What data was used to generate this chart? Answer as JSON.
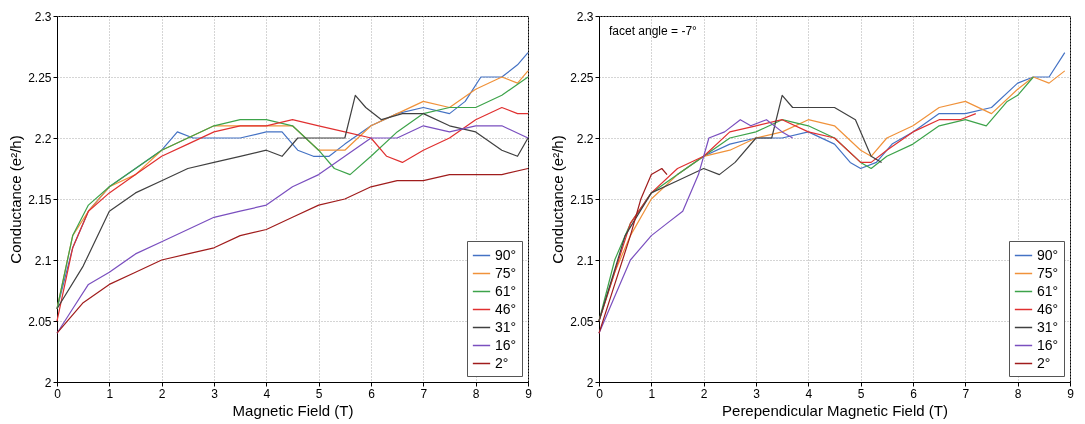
{
  "chart_data": [
    {
      "type": "line",
      "xlabel": "Magnetic Field (T)",
      "ylabel": "Conductance (e²/h)",
      "xlim": [
        0,
        9
      ],
      "ylim": [
        2,
        2.3
      ],
      "xticks": [
        0,
        1,
        2,
        3,
        4,
        5,
        6,
        7,
        8,
        9
      ],
      "yticks": [
        2,
        2.05,
        2.1,
        2.15,
        2.2,
        2.25,
        2.3
      ],
      "grid": true,
      "legend": "bottom right",
      "line_style": "solid",
      "series": [
        {
          "name": "90°",
          "color": "#4472c4",
          "x": [
            0,
            0.3,
            0.6,
            1,
            1.5,
            2,
            2.3,
            2.6,
            3,
            3.5,
            4,
            4.3,
            4.6,
            4.9,
            5.2,
            5.5,
            6,
            6.5,
            7,
            7.5,
            7.8,
            8.1,
            8.5,
            8.8,
            9
          ],
          "values": [
            2.06,
            2.11,
            2.14,
            2.16,
            2.175,
            2.19,
            2.205,
            2.2,
            2.2,
            2.2,
            2.205,
            2.205,
            2.19,
            2.185,
            2.185,
            2.195,
            2.21,
            2.22,
            2.225,
            2.22,
            2.23,
            2.25,
            2.25,
            2.26,
            2.27
          ]
        },
        {
          "name": "75°",
          "color": "#f0923a",
          "x": [
            0,
            0.3,
            0.6,
            1,
            1.5,
            2,
            2.5,
            3,
            3.5,
            4,
            4.5,
            5,
            5.5,
            6,
            6.5,
            7,
            7.5,
            8,
            8.5,
            8.8,
            9
          ],
          "values": [
            2.06,
            2.12,
            2.14,
            2.16,
            2.17,
            2.19,
            2.2,
            2.21,
            2.21,
            2.21,
            2.21,
            2.19,
            2.19,
            2.21,
            2.22,
            2.23,
            2.225,
            2.24,
            2.25,
            2.245,
            2.255
          ]
        },
        {
          "name": "61°",
          "color": "#3da34a",
          "x": [
            0,
            0.3,
            0.6,
            1,
            1.5,
            2,
            2.5,
            3,
            3.5,
            4,
            4.5,
            5,
            5.3,
            5.6,
            6,
            6.5,
            7,
            7.5,
            8,
            8.5,
            9
          ],
          "values": [
            2.06,
            2.12,
            2.145,
            2.16,
            2.175,
            2.19,
            2.2,
            2.21,
            2.215,
            2.215,
            2.21,
            2.19,
            2.175,
            2.17,
            2.185,
            2.205,
            2.22,
            2.225,
            2.225,
            2.235,
            2.25
          ]
        },
        {
          "name": "46°",
          "color": "#e03030",
          "x": [
            0,
            0.3,
            0.6,
            1,
            1.5,
            2,
            2.5,
            3,
            3.5,
            4,
            4.5,
            5,
            5.5,
            6,
            6.3,
            6.6,
            7,
            7.5,
            8,
            8.5,
            8.8,
            9
          ],
          "values": [
            2.05,
            2.11,
            2.14,
            2.155,
            2.17,
            2.185,
            2.195,
            2.205,
            2.21,
            2.21,
            2.215,
            2.21,
            2.205,
            2.2,
            2.185,
            2.18,
            2.19,
            2.2,
            2.215,
            2.225,
            2.22,
            2.22
          ]
        },
        {
          "name": "31°",
          "color": "#404040",
          "x": [
            0,
            0.5,
            1,
            1.5,
            2,
            2.5,
            3,
            3.5,
            4,
            4.3,
            4.6,
            5,
            5.5,
            5.7,
            5.9,
            6.2,
            6.6,
            7,
            7.5,
            8,
            8.5,
            8.8,
            9
          ],
          "values": [
            2.06,
            2.095,
            2.14,
            2.155,
            2.165,
            2.175,
            2.18,
            2.185,
            2.19,
            2.185,
            2.2,
            2.2,
            2.2,
            2.235,
            2.225,
            2.215,
            2.22,
            2.22,
            2.21,
            2.205,
            2.19,
            2.185,
            2.2
          ]
        },
        {
          "name": "16°",
          "color": "#7a4fbf",
          "x": [
            0,
            0.3,
            0.6,
            1,
            1.5,
            2,
            2.5,
            3,
            3.5,
            4,
            4.5,
            5,
            5.5,
            6,
            6.5,
            7,
            7.5,
            8,
            8.5,
            9
          ],
          "values": [
            2.04,
            2.06,
            2.08,
            2.09,
            2.105,
            2.115,
            2.125,
            2.135,
            2.14,
            2.145,
            2.16,
            2.17,
            2.185,
            2.2,
            2.2,
            2.21,
            2.205,
            2.21,
            2.21,
            2.2
          ]
        },
        {
          "name": "2°",
          "color": "#a01c1c",
          "x": [
            0,
            0.5,
            1,
            1.5,
            2,
            2.5,
            3,
            3.5,
            4,
            4.5,
            5,
            5.5,
            6,
            6.5,
            7,
            7.5,
            8,
            8.5,
            9
          ],
          "values": [
            2.04,
            2.065,
            2.08,
            2.09,
            2.1,
            2.105,
            2.11,
            2.12,
            2.125,
            2.135,
            2.145,
            2.15,
            2.16,
            2.165,
            2.165,
            2.17,
            2.17,
            2.17,
            2.175
          ]
        }
      ]
    },
    {
      "type": "line",
      "xlabel": "Perependicular Magnetic Field (T)",
      "ylabel": "Conductance (e²/h)",
      "xlim": [
        0,
        9
      ],
      "ylim": [
        2,
        2.3
      ],
      "xticks": [
        0,
        1,
        2,
        3,
        4,
        5,
        6,
        7,
        8,
        9
      ],
      "yticks": [
        2,
        2.05,
        2.1,
        2.15,
        2.2,
        2.25,
        2.3
      ],
      "grid": true,
      "legend": "bottom right",
      "line_style": "solid",
      "annotations": [
        "facet angle = -7°"
      ],
      "series": [
        {
          "name": "90°",
          "color": "#4472c4",
          "x": [
            1.5,
            2,
            2.5,
            3,
            3.5,
            4,
            4.5,
            4.8,
            5,
            5.3,
            5.6,
            6,
            6.5,
            7,
            7.5,
            8,
            8.3,
            8.6,
            8.9
          ],
          "values": [
            2.17,
            2.185,
            2.195,
            2.2,
            2.2,
            2.205,
            2.195,
            2.18,
            2.175,
            2.18,
            2.195,
            2.205,
            2.22,
            2.22,
            2.225,
            2.245,
            2.25,
            2.25,
            2.27
          ]
        },
        {
          "name": "75°",
          "color": "#f0923a",
          "x": [
            0,
            0.3,
            0.6,
            1,
            1.5,
            2,
            2.5,
            3,
            3.5,
            4,
            4.5,
            5,
            5.2,
            5.5,
            6,
            6.5,
            7,
            7.5,
            8,
            8.3,
            8.6,
            8.9
          ],
          "values": [
            2.05,
            2.09,
            2.12,
            2.15,
            2.17,
            2.185,
            2.19,
            2.2,
            2.205,
            2.215,
            2.21,
            2.19,
            2.185,
            2.2,
            2.21,
            2.225,
            2.23,
            2.22,
            2.24,
            2.25,
            2.245,
            2.255
          ]
        },
        {
          "name": "61°",
          "color": "#3da34a",
          "x": [
            0,
            0.3,
            0.6,
            1,
            1.5,
            2,
            2.5,
            3,
            3.5,
            4,
            4.5,
            5,
            5.2,
            5.5,
            6,
            6.5,
            7,
            7.4,
            7.8,
            8,
            8.3
          ],
          "values": [
            2.05,
            2.1,
            2.13,
            2.155,
            2.17,
            2.185,
            2.2,
            2.205,
            2.215,
            2.21,
            2.2,
            2.18,
            2.175,
            2.185,
            2.195,
            2.21,
            2.215,
            2.21,
            2.23,
            2.235,
            2.25
          ]
        },
        {
          "name": "46°",
          "color": "#e03030",
          "x": [
            0,
            0.3,
            0.6,
            1,
            1.5,
            2,
            2.5,
            3,
            3.5,
            4,
            4.5,
            5,
            5.2,
            5.5,
            6,
            6.5,
            6.9,
            7.2
          ],
          "values": [
            2.05,
            2.09,
            2.13,
            2.155,
            2.175,
            2.185,
            2.205,
            2.21,
            2.215,
            2.205,
            2.2,
            2.18,
            2.18,
            2.19,
            2.205,
            2.215,
            2.215,
            2.22
          ]
        },
        {
          "name": "31°",
          "color": "#404040",
          "x": [
            0,
            0.5,
            1,
            1.5,
            2,
            2.3,
            2.6,
            3,
            3.3,
            3.5,
            3.7,
            4,
            4.5,
            4.9,
            5.2,
            5.4
          ],
          "values": [
            2.05,
            2.12,
            2.155,
            2.165,
            2.175,
            2.17,
            2.18,
            2.2,
            2.2,
            2.235,
            2.225,
            2.225,
            2.225,
            2.215,
            2.185,
            2.18
          ]
        },
        {
          "name": "16°",
          "color": "#7a4fbf",
          "x": [
            0,
            0.3,
            0.6,
            1,
            1.3,
            1.6,
            1.9,
            2.1,
            2.4,
            2.7,
            2.9,
            3.2,
            3.5,
            3.7
          ],
          "values": [
            2.04,
            2.07,
            2.1,
            2.12,
            2.13,
            2.14,
            2.17,
            2.2,
            2.205,
            2.215,
            2.21,
            2.215,
            2.205,
            2.2
          ]
        },
        {
          "name": "2°",
          "color": "#a01c1c",
          "x": [
            0,
            0.3,
            0.6,
            0.8,
            1,
            1.2,
            1.3
          ],
          "values": [
            2.04,
            2.08,
            2.12,
            2.15,
            2.17,
            2.175,
            2.17
          ]
        }
      ]
    }
  ]
}
